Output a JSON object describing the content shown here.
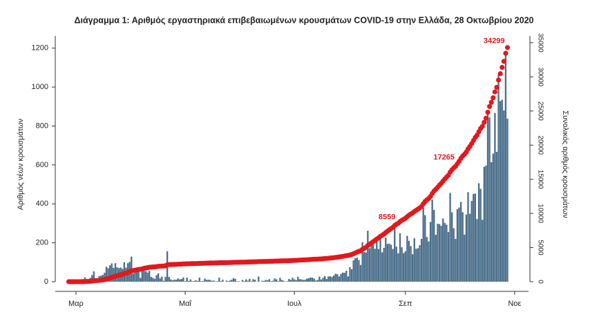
{
  "chart_data": {
    "type": "combo",
    "title": "Διάγραμμα 1: Αριθμός εργαστηριακά επιβεβαιωμένων κρουσμάτων COVID-19 στην Ελλάδα, 28 Οκτωβρίου 2020",
    "y_label": "Αριθμός νέων κρουσμάτων",
    "y2_label": "Συνολικός αριθμός κρουσμάτων",
    "xlim": [
      -6,
      256
    ],
    "xticks": [
      {
        "value": 4,
        "label": "Μαρ"
      },
      {
        "value": 65,
        "label": "Μαΐ"
      },
      {
        "value": 126,
        "label": "Ιουλ"
      },
      {
        "value": 188,
        "label": "Σεπ"
      },
      {
        "value": 249,
        "label": "Νοε"
      }
    ],
    "ylim": [
      0,
      1270
    ],
    "yticks": [
      0,
      200,
      400,
      600,
      800,
      1000,
      1200
    ],
    "y2lim": [
      0,
      36200
    ],
    "y2ticks": [
      0,
      5000,
      10000,
      15000,
      20000,
      25000,
      30000,
      35000
    ],
    "series": [
      {
        "type": "bar",
        "axis": "y",
        "color": "#4a6e8a",
        "values": [
          1,
          2,
          0,
          0,
          4,
          0,
          0,
          2,
          0,
          22,
          14,
          0,
          20,
          34,
          53,
          11,
          10,
          29,
          31,
          35,
          46,
          77,
          69,
          84,
          94,
          71,
          95,
          74,
          70,
          73,
          66,
          100,
          72,
          95,
          102,
          129,
          42,
          60,
          54,
          62,
          20,
          56,
          77,
          54,
          47,
          56,
          25,
          20,
          15,
          34,
          43,
          17,
          26,
          5,
          25,
          156,
          25,
          12,
          7,
          11,
          10,
          17,
          12,
          14,
          22,
          3,
          21,
          4,
          12,
          3,
          4,
          7,
          4,
          21,
          3,
          4,
          16,
          10,
          10,
          9,
          5,
          6,
          2,
          3,
          21,
          3,
          10,
          0,
          6,
          3,
          6,
          10,
          18,
          15,
          2,
          3,
          0,
          9,
          3,
          12,
          5,
          15,
          3,
          13,
          10,
          1,
          27,
          0,
          5,
          4,
          9,
          7,
          13,
          3,
          5,
          17,
          12,
          3,
          20,
          9,
          5,
          1,
          3,
          14,
          9,
          20,
          12,
          8,
          25,
          13,
          12,
          9,
          10,
          16,
          18,
          22,
          21,
          16,
          6,
          9,
          26,
          11,
          20,
          29,
          14,
          27,
          28,
          24,
          32,
          41,
          39,
          27,
          40,
          47,
          46,
          56,
          27,
          75,
          64,
          110,
          121,
          124,
          112,
          86,
          203,
          152,
          150,
          262,
          172,
          203,
          191,
          169,
          217,
          168,
          229,
          151,
          174,
          227,
          194,
          196,
          190,
          168,
          284,
          180,
          146,
          249,
          177,
          147,
          156,
          236,
          210,
          183,
          141,
          223,
          169,
          172,
          188,
          220,
          380,
          342,
          229,
          207,
          307,
          422,
          369,
          241,
          298,
          296,
          287,
          325,
          302,
          293,
          256,
          456,
          357,
          275,
          220,
          373,
          381,
          410,
          357,
          242,
          345,
          460,
          349,
          415,
          451,
          453,
          322,
          506,
          477,
          318,
          590,
          597,
          880,
          844,
          614,
          658,
          867,
          667,
          1064,
          928,
          935,
          880,
          1186,
          838
        ]
      },
      {
        "type": "line",
        "axis": "y2",
        "color": "#e3181d",
        "values": [
          1,
          3,
          3,
          3,
          7,
          7,
          7,
          9,
          9,
          31,
          45,
          45,
          65,
          99,
          152,
          163,
          173,
          202,
          233,
          268,
          314,
          391,
          460,
          544,
          638,
          709,
          804,
          878,
          948,
          1021,
          1087,
          1187,
          1259,
          1354,
          1456,
          1585,
          1627,
          1687,
          1741,
          1803,
          1823,
          1879,
          1956,
          2010,
          2057,
          2113,
          2138,
          2158,
          2173,
          2207,
          2250,
          2267,
          2293,
          2298,
          2323,
          2479,
          2504,
          2516,
          2523,
          2534,
          2544,
          2561,
          2573,
          2587,
          2609,
          2612,
          2633,
          2637,
          2649,
          2652,
          2656,
          2663,
          2667,
          2688,
          2691,
          2695,
          2711,
          2721,
          2731,
          2740,
          2745,
          2751,
          2753,
          2756,
          2777,
          2780,
          2790,
          2790,
          2796,
          2799,
          2805,
          2815,
          2833,
          2848,
          2850,
          2853,
          2853,
          2862,
          2865,
          2877,
          2882,
          2897,
          2900,
          2913,
          2923,
          2924,
          2951,
          2951,
          2956,
          2960,
          2969,
          2976,
          2989,
          2992,
          2997,
          3014,
          3026,
          3029,
          3049,
          3058,
          3063,
          3064,
          3067,
          3081,
          3090,
          3110,
          3122,
          3130,
          3155,
          3168,
          3180,
          3189,
          3199,
          3215,
          3233,
          3255,
          3276,
          3292,
          3298,
          3307,
          3333,
          3344,
          3364,
          3393,
          3407,
          3434,
          3462,
          3486,
          3518,
          3559,
          3598,
          3625,
          3665,
          3712,
          3758,
          3814,
          3841,
          3916,
          3980,
          4090,
          4211,
          4335,
          4447,
          4533,
          4736,
          4888,
          5038,
          5300,
          5472,
          5675,
          5866,
          6035,
          6252,
          6420,
          6649,
          6800,
          6974,
          7201,
          7395,
          7591,
          7781,
          7949,
          8233,
          8413,
          8559,
          8808,
          8985,
          9132,
          9288,
          9524,
          9734,
          9917,
          10058,
          10281,
          10450,
          10622,
          10810,
          11030,
          11410,
          11752,
          11981,
          12188,
          12495,
          12917,
          13286,
          13527,
          13825,
          14121,
          14408,
          14733,
          15035,
          15328,
          15584,
          16040,
          16397,
          16672,
          16892,
          17265,
          17646,
          18056,
          18413,
          18655,
          19000,
          19460,
          19809,
          20224,
          20675,
          21128,
          21450,
          21956,
          22433,
          22751,
          23341,
          23938,
          24818,
          25662,
          26276,
          26934,
          27801,
          28468,
          29532,
          30460,
          31395,
          32275,
          33461,
          34299
        ]
      }
    ],
    "annotations": [
      {
        "text": "8559",
        "x": 184,
        "y": 8559
      },
      {
        "text": "17265",
        "x": 217,
        "y": 17265
      },
      {
        "text": "34299",
        "x": 245,
        "y": 34299
      }
    ]
  }
}
